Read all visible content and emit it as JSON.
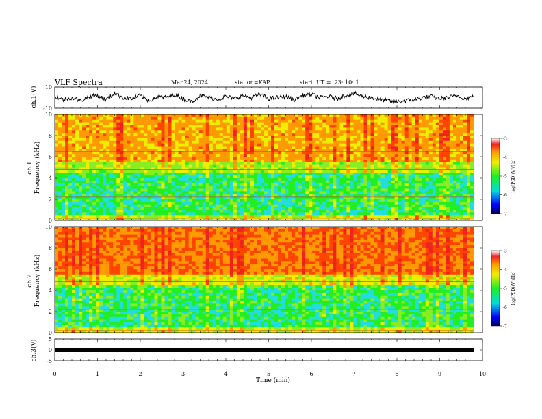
{
  "header": {
    "title": "VLF Spectra",
    "date": "Mar.24, 2024",
    "station": "station=KAP",
    "start": "start  UT =  23: 10: 1"
  },
  "chart_data": [
    {
      "type": "line",
      "title": "",
      "ylabel": "ch.1(V)",
      "ylim": [
        -10,
        10
      ],
      "yticks": [
        "10",
        "-10"
      ],
      "xlim": [
        0,
        10
      ],
      "series": [
        {
          "x": [
            0,
            0.2,
            0.4,
            0.6,
            0.8,
            1,
            1.2,
            1.4,
            1.6,
            1.8,
            2,
            2.2,
            2.4,
            2.6,
            2.8,
            3,
            3.2,
            3.4,
            3.6,
            3.8,
            4,
            4.2,
            4.4,
            4.6,
            4.8,
            5,
            5.2,
            5.4,
            5.6,
            5.8,
            6,
            6.2,
            6.4,
            6.6,
            6.8,
            7,
            7.2,
            7.4,
            7.6,
            7.8,
            8,
            8.2,
            8.4,
            8.6,
            8.8,
            9,
            9.2,
            9.4,
            9.6,
            9.8
          ],
          "y": [
            1,
            -2,
            0,
            -3,
            1,
            2,
            -2,
            4,
            0,
            -1,
            2,
            -3,
            1,
            0,
            3,
            -1,
            -4,
            2,
            0,
            -2,
            1,
            -1,
            2,
            0,
            3,
            -1,
            0,
            1,
            -2,
            2,
            3,
            0,
            1,
            -1,
            2,
            4,
            1,
            0,
            -2,
            -3,
            -4,
            -3,
            -2,
            0,
            1,
            -1,
            0,
            2,
            -1,
            1
          ]
        }
      ]
    },
    {
      "type": "heatmap",
      "title": "",
      "ylabel": "ch.1\nFrequency (kHz)",
      "ylim": [
        0,
        10
      ],
      "yticks": [
        "0",
        "2",
        "4",
        "6",
        "8",
        "10"
      ],
      "xlim": [
        0,
        10
      ],
      "description_bands": "kHz ranges: 0.3-5.5 mostly green/cyan (level ~-5), 5.5-10 yellow/red (level ~-4 to -3.5)",
      "colorbar": {
        "label": "log(PSD)(V²/Hz)",
        "range": [
          -7,
          -3
        ],
        "ticks": [
          "-3",
          "-4",
          "-5",
          "-6",
          "-7"
        ]
      }
    },
    {
      "type": "heatmap",
      "title": "",
      "ylabel": "ch.2\nFrequency (kHz)",
      "ylim": [
        0,
        10
      ],
      "yticks": [
        "0",
        "2",
        "4",
        "6",
        "8",
        "10"
      ],
      "xlim": [
        0,
        10
      ],
      "colorbar": {
        "label": "log(PSD)(V²/Hz)",
        "range": [
          -7,
          -3
        ],
        "ticks": [
          "-3",
          "-4",
          "-5",
          "-6",
          "-7"
        ]
      }
    },
    {
      "type": "line",
      "title": "",
      "ylabel": "ch.3(V)",
      "ylim": [
        -5,
        5
      ],
      "yticks": [
        "5",
        "0",
        "-5"
      ],
      "xlim": [
        0,
        10
      ],
      "series": [
        {
          "x": [
            0,
            9.8
          ],
          "y": [
            0,
            0
          ]
        }
      ]
    }
  ],
  "xaxis": {
    "label": "Time (min)",
    "ticks": [
      "0",
      "1",
      "2",
      "3",
      "4",
      "5",
      "6",
      "7",
      "8",
      "9",
      "10"
    ]
  },
  "colors": {
    "red": "#ee2222",
    "orange": "#ffaa00",
    "yellow": "#eeee00",
    "green": "#22ee22",
    "cyan": "#22dddd",
    "blue": "#0000ff",
    "black": "#000000"
  }
}
